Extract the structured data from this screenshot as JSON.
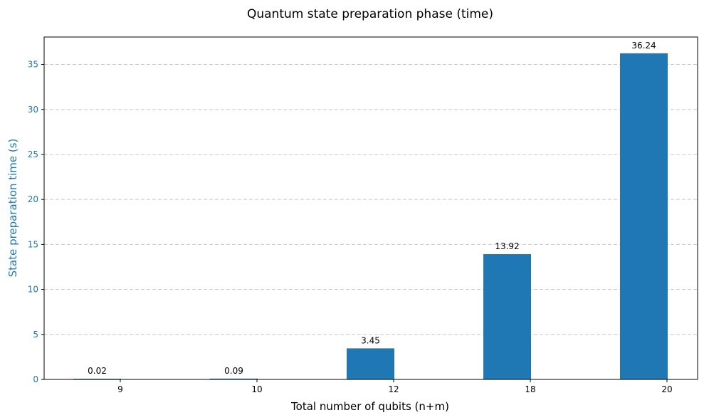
{
  "chart_data": {
    "type": "bar",
    "title": "Quantum state preparation phase (time)",
    "xlabel": "Total number of qubits (n+m)",
    "ylabel": "State preparation time (s)",
    "categories": [
      "9",
      "10",
      "12",
      "18",
      "20"
    ],
    "values": [
      0.02,
      0.09,
      3.45,
      13.92,
      36.24
    ],
    "value_labels": [
      "0.02",
      "0.09",
      "3.45",
      "13.92",
      "36.24"
    ],
    "ylim": [
      0,
      38.05
    ],
    "yticks": [
      0,
      5,
      10,
      15,
      20,
      25,
      30,
      35
    ],
    "grid": "y-dashed",
    "legend": "none",
    "colors": {
      "bar": "#1f77b4",
      "ylabel": "#1f77b4",
      "ytick": "#1f77b4",
      "text": "#000000"
    }
  }
}
